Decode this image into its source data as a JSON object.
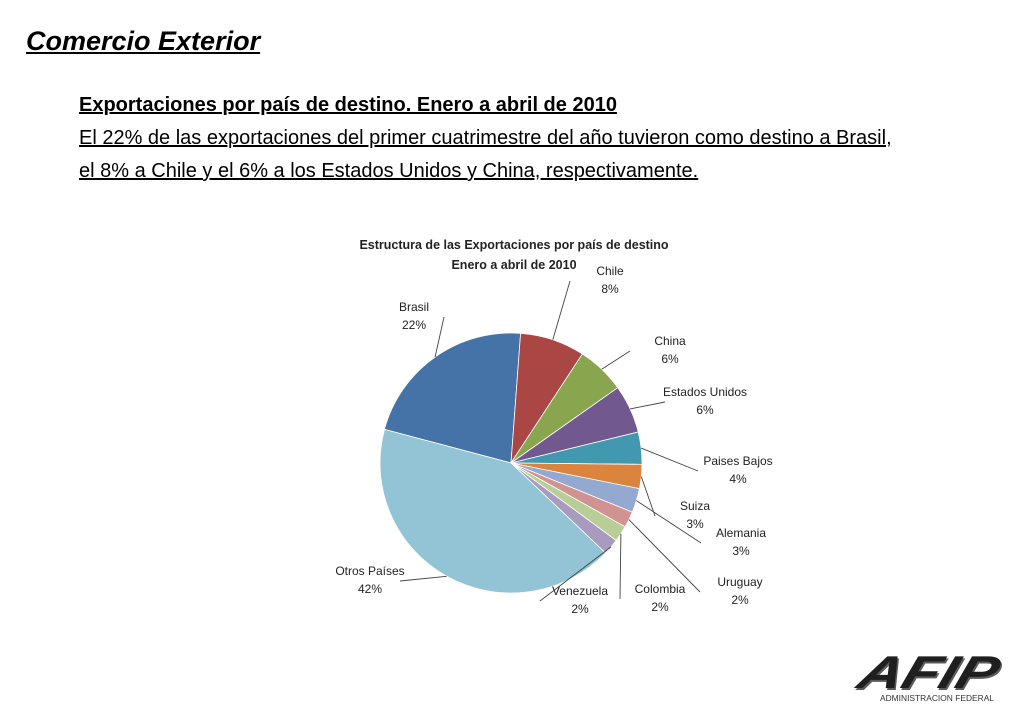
{
  "slide": {
    "title": "Comercio Exterior",
    "subtitle": "Exportaciones por país de destino. Enero a abril de 2010",
    "paragraph_line1": "El 22% de las exportaciones del primer cuatrimestre del año tuvieron como destino a Brasil,",
    "paragraph_line2": "el 8% a Chile y el 6% a los Estados Unidos y China, respectivamente."
  },
  "logo": {
    "wordmark": "AFIP",
    "tagline": "ADMINISTRACION FEDERAL"
  },
  "chart_data": {
    "type": "pie",
    "title_line1": "Estructura de las Exportaciones  por país de destino",
    "title_line2": "Enero a abril de 2010",
    "categories": [
      "Brasil",
      "Chile",
      "China",
      "Estados Unidos",
      "Paises Bajos",
      "Suiza",
      "Alemania",
      "Uruguay",
      "Colombia",
      "Venezuela",
      "Otros Países"
    ],
    "values": [
      22,
      8,
      6,
      6,
      4,
      3,
      3,
      2,
      2,
      2,
      42
    ],
    "value_labels": [
      "22%",
      "8%",
      "6%",
      "6%",
      "4%",
      "3%",
      "3%",
      "2%",
      "2%",
      "2%",
      "42%"
    ],
    "colors": [
      "#4572A7",
      "#AA4643",
      "#89A54E",
      "#71588F",
      "#4198AF",
      "#DB843D",
      "#93A9CF",
      "#D19392",
      "#B9CD96",
      "#A99BBD",
      "#92C4D6"
    ],
    "legend": "none"
  }
}
